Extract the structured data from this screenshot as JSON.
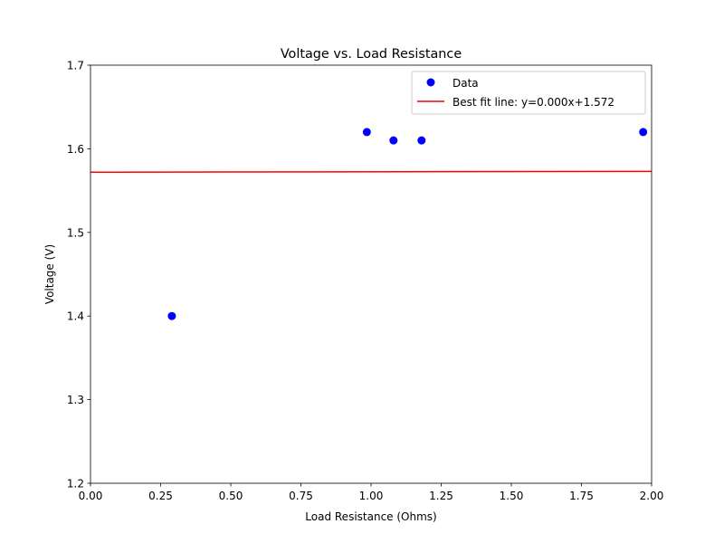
{
  "chart_data": {
    "type": "scatter",
    "title": "Voltage vs. Load Resistance",
    "xlabel": "Load Resistance (Ohms)",
    "ylabel": "Voltage (V)",
    "xlim": [
      0.0,
      2.0
    ],
    "ylim": [
      1.2,
      1.7
    ],
    "x_ticks": [
      0.0,
      0.25,
      0.5,
      0.75,
      1.0,
      1.25,
      1.5,
      1.75,
      2.0
    ],
    "x_tick_labels": [
      "0.00",
      "0.25",
      "0.50",
      "0.75",
      "1.00",
      "1.25",
      "1.50",
      "1.75",
      "2.00"
    ],
    "y_ticks": [
      1.2,
      1.3,
      1.4,
      1.5,
      1.6,
      1.7
    ],
    "y_tick_labels": [
      "1.2",
      "1.3",
      "1.4",
      "1.5",
      "1.6",
      "1.7"
    ],
    "grid": false,
    "legend_position": "top-right",
    "series": [
      {
        "name": "Data",
        "kind": "scatter",
        "color": "#0000ff",
        "x": [
          0.29,
          0.985,
          1.08,
          1.18,
          1.97
        ],
        "y": [
          1.4,
          1.62,
          1.61,
          1.61,
          1.62
        ]
      },
      {
        "name": "Best fit line: y=0.000x+1.572",
        "kind": "line",
        "color": "#ff0000",
        "x": [
          0.0,
          2.0
        ],
        "y": [
          1.572,
          1.573
        ]
      }
    ]
  }
}
